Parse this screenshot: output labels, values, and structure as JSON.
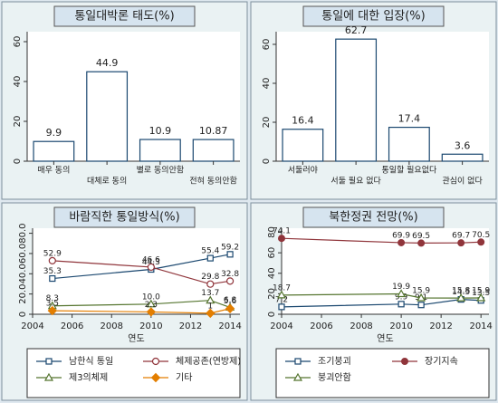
{
  "chart_data": [
    {
      "type": "bar",
      "title": "통일대박론 태도(%)",
      "categories": [
        "매우 동의",
        "대체로 동의",
        "별로 동의안함",
        "전혀 동의안함"
      ],
      "values": [
        9.9,
        44.9,
        10.9,
        10.87
      ],
      "color": "#1a476f",
      "ylim": [
        0,
        65
      ],
      "yticks": [
        0,
        20,
        40,
        60
      ],
      "grid": false
    },
    {
      "type": "bar",
      "title": "통일에 대한 입장(%)",
      "categories": [
        "서둘러야",
        "서둘 필요 없다",
        "통일할 필요없다",
        "관심이 없다"
      ],
      "values": [
        16.4,
        62.7,
        17.4,
        3.6
      ],
      "color": "#1a476f",
      "ylim": [
        0,
        66.5
      ],
      "yticks": [
        0,
        20,
        40,
        60
      ],
      "grid": false
    },
    {
      "type": "line",
      "title": "바람직한 통일방식(%)",
      "xlabel": "연도",
      "x": [
        2005,
        2010,
        2013,
        2014
      ],
      "series": [
        {
          "name": "남한식 통일",
          "color": "#1a476f",
          "marker": "square",
          "values": [
            35.3,
            44.3,
            55.4,
            59.2
          ]
        },
        {
          "name": "체제공존(연방제)",
          "color": "#90353b",
          "marker": "circle",
          "values": [
            52.9,
            46.6,
            29.8,
            32.8
          ]
        },
        {
          "name": "제3의체제",
          "color": "#55752f",
          "marker": "triangle",
          "values": [
            8.3,
            10.0,
            13.7,
            6.8
          ],
          "value_labels": [
            "8.3",
            "10.0",
            "13.7",
            "6.8"
          ]
        },
        {
          "name": "기타",
          "color": "#e37e00",
          "marker": "diamond",
          "values": [
            3.5,
            2.3,
            1.0,
            5.6
          ]
        }
      ],
      "xlim": [
        2004,
        2014.5
      ],
      "xticks": [
        2004,
        2006,
        2008,
        2010,
        2012,
        2014
      ],
      "ylim": [
        0,
        85
      ],
      "yticks": [
        0,
        {
          "value": 20,
          "label": "20.0"
        },
        {
          "value": 40,
          "label": "40.0"
        },
        {
          "value": 60,
          "label": "60.0"
        },
        {
          "value": 80,
          "label": "80.0"
        }
      ],
      "grid": false
    },
    {
      "type": "line",
      "title": "북한정권 전망(%)",
      "xlabel": "연도",
      "x": [
        2004,
        2010,
        2011,
        2013,
        2014
      ],
      "series": [
        {
          "name": "조기붕괴",
          "color": "#1a476f",
          "marker": "square",
          "values": [
            7.2,
            9.9,
            9.1,
            14.5,
            13.5
          ]
        },
        {
          "name": "장기지속",
          "color": "#90353b",
          "marker": "dot",
          "values": [
            74.1,
            69.9,
            69.5,
            69.7,
            70.5
          ]
        },
        {
          "name": "붕괴안함",
          "color": "#55752f",
          "marker": "triangle",
          "values": [
            18.7,
            19.9,
            15.9,
            15.8,
            15.9
          ]
        }
      ],
      "xlim": [
        2004,
        2014.4
      ],
      "xticks": [
        2004,
        2006,
        2008,
        2010,
        2012,
        2014
      ],
      "ylim": [
        0,
        84
      ],
      "yticks": [
        0,
        20,
        40,
        60,
        80
      ],
      "grid": false
    }
  ]
}
